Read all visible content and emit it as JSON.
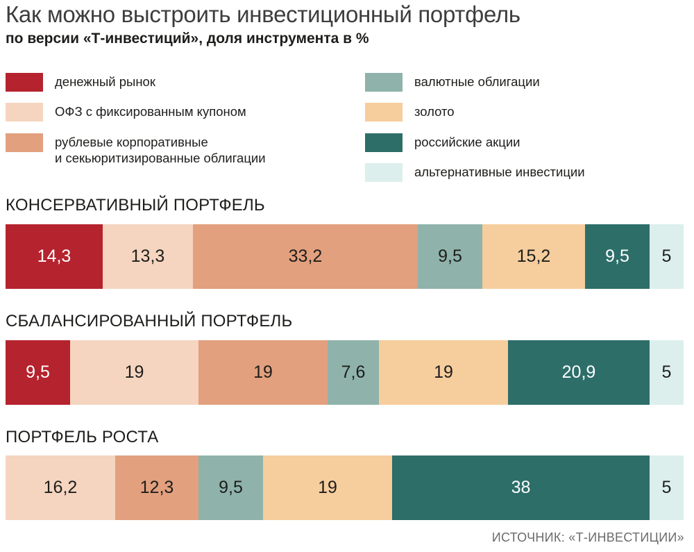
{
  "title": "Как можно выстроить инвестиционный портфель",
  "subtitle": "по версии «Т-инвестиций», доля инструмента в %",
  "source": "ИСТОЧНИК: «Т-ИНВЕСТИЦИИ»",
  "legend": [
    {
      "label": "денежный рынок",
      "color": "#b5232e"
    },
    {
      "label": "ОФЗ с фиксированным купоном",
      "color": "#f5d5c0"
    },
    {
      "label": "рублевые корпоративные\nи секьюритизированные облигации",
      "color": "#e2a07e"
    },
    {
      "label": "валютные облигации",
      "color": "#8fb3aa"
    },
    {
      "label": "золото",
      "color": "#f6cd9d"
    },
    {
      "label": "российские акции",
      "color": "#2d6e69"
    },
    {
      "label": "альтернативные инвестиции",
      "color": "#dcefed"
    }
  ],
  "chart_data": {
    "type": "bar",
    "stacked": true,
    "orientation": "horizontal",
    "categories": [
      "КОНСЕРВАТИВНЫЙ ПОРТФЕЛЬ",
      "СБАЛАНСИРОВАННЫЙ ПОРТФЕЛЬ",
      "ПОРТФЕЛЬ РОСТА"
    ],
    "series": [
      {
        "name": "денежный рынок",
        "color": "#b5232e",
        "values": [
          14.3,
          9.5,
          0
        ]
      },
      {
        "name": "ОФЗ с фиксированным купоном",
        "color": "#f5d5c0",
        "values": [
          13.3,
          19,
          16.2
        ]
      },
      {
        "name": "рублевые корпоративные и секьюритизированные облигации",
        "color": "#e2a07e",
        "values": [
          33.2,
          19,
          12.3
        ]
      },
      {
        "name": "валютные облигации",
        "color": "#8fb3aa",
        "values": [
          9.5,
          7.6,
          9.5
        ]
      },
      {
        "name": "золото",
        "color": "#f6cd9d",
        "values": [
          15.2,
          19,
          19
        ]
      },
      {
        "name": "российские акции",
        "color": "#2d6e69",
        "values": [
          9.5,
          20.9,
          38
        ]
      },
      {
        "name": "альтернативные инвестиции",
        "color": "#dcefed",
        "values": [
          5,
          5,
          5
        ]
      }
    ],
    "value_labels": [
      [
        "14,3",
        "13,3",
        "33,2",
        "9,5",
        "15,2",
        "9,5",
        "5"
      ],
      [
        "9,5",
        "19",
        "19",
        "7,6",
        "19",
        "20,9",
        "5"
      ],
      [
        "",
        "16,2",
        "12,3",
        "9,5",
        "19",
        "38",
        "5"
      ]
    ],
    "label_colors": [
      "#ffffff",
      "#1d1d1b",
      "#1d1d1b",
      "#1d1d1b",
      "#1d1d1b",
      "#ffffff",
      "#1d1d1b"
    ],
    "xlim": [
      0,
      100
    ],
    "grid": false,
    "legend_position": "top"
  }
}
